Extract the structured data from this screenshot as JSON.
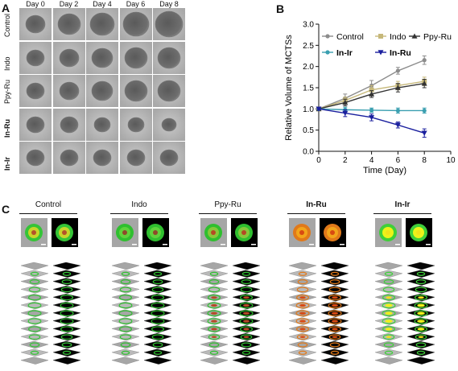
{
  "panels": {
    "a": "A",
    "b": "B",
    "c": "C"
  },
  "panel_a": {
    "days": [
      "Day 0",
      "Day 2",
      "Day 4",
      "Day 6",
      "Day 8"
    ],
    "rows": [
      "Control",
      "Indo",
      "Ppy-Ru",
      "In-Ru",
      "In-Ir"
    ],
    "bold_rows": [
      "In-Ru",
      "In-Ir"
    ]
  },
  "chart_data": {
    "type": "line",
    "title": "",
    "xlabel": "Time (Day)",
    "ylabel": "Relative Volume of MCTSs",
    "xlim": [
      0,
      10
    ],
    "ylim": [
      0,
      3.0
    ],
    "xticks": [
      "0",
      "2",
      "4",
      "6",
      "8",
      "10"
    ],
    "yticks": [
      "0.0",
      "0.5",
      "1.0",
      "1.5",
      "2.0",
      "2.5",
      "3.0"
    ],
    "x": [
      0,
      2,
      4,
      6,
      8
    ],
    "legend_position": "top",
    "series": [
      {
        "name": "Control",
        "values": [
          1.0,
          1.25,
          1.55,
          1.9,
          2.15
        ],
        "errors": [
          0.02,
          0.1,
          0.12,
          0.08,
          0.1
        ],
        "color": "#8c8c8c",
        "marker": "circle"
      },
      {
        "name": "Indo",
        "values": [
          1.0,
          1.2,
          1.45,
          1.55,
          1.65
        ],
        "errors": [
          0.02,
          0.08,
          0.1,
          0.1,
          0.1
        ],
        "color": "#c6b87a",
        "marker": "square"
      },
      {
        "name": "Ppy-Ru",
        "values": [
          1.0,
          1.15,
          1.35,
          1.5,
          1.6
        ],
        "errors": [
          0.02,
          0.08,
          0.08,
          0.1,
          0.1
        ],
        "color": "#333333",
        "marker": "triangle"
      },
      {
        "name": "In-Ir",
        "values": [
          1.0,
          0.98,
          0.97,
          0.96,
          0.96
        ],
        "errors": [
          0.02,
          0.06,
          0.05,
          0.06,
          0.06
        ],
        "color": "#3a9fb0",
        "marker": "circle"
      },
      {
        "name": "In-Ru",
        "values": [
          1.0,
          0.9,
          0.8,
          0.62,
          0.43
        ],
        "errors": [
          0.02,
          0.08,
          0.08,
          0.07,
          0.1
        ],
        "color": "#1a1f9e",
        "marker": "triangle-down"
      }
    ],
    "bold_legend": [
      "In-Ir",
      "In-Ru"
    ]
  },
  "panel_c": {
    "groups": [
      "Control",
      "Indo",
      "Ppy-Ru",
      "In-Ru",
      "In-Ir"
    ],
    "bold_groups": [
      "In-Ru",
      "In-Ir"
    ]
  }
}
